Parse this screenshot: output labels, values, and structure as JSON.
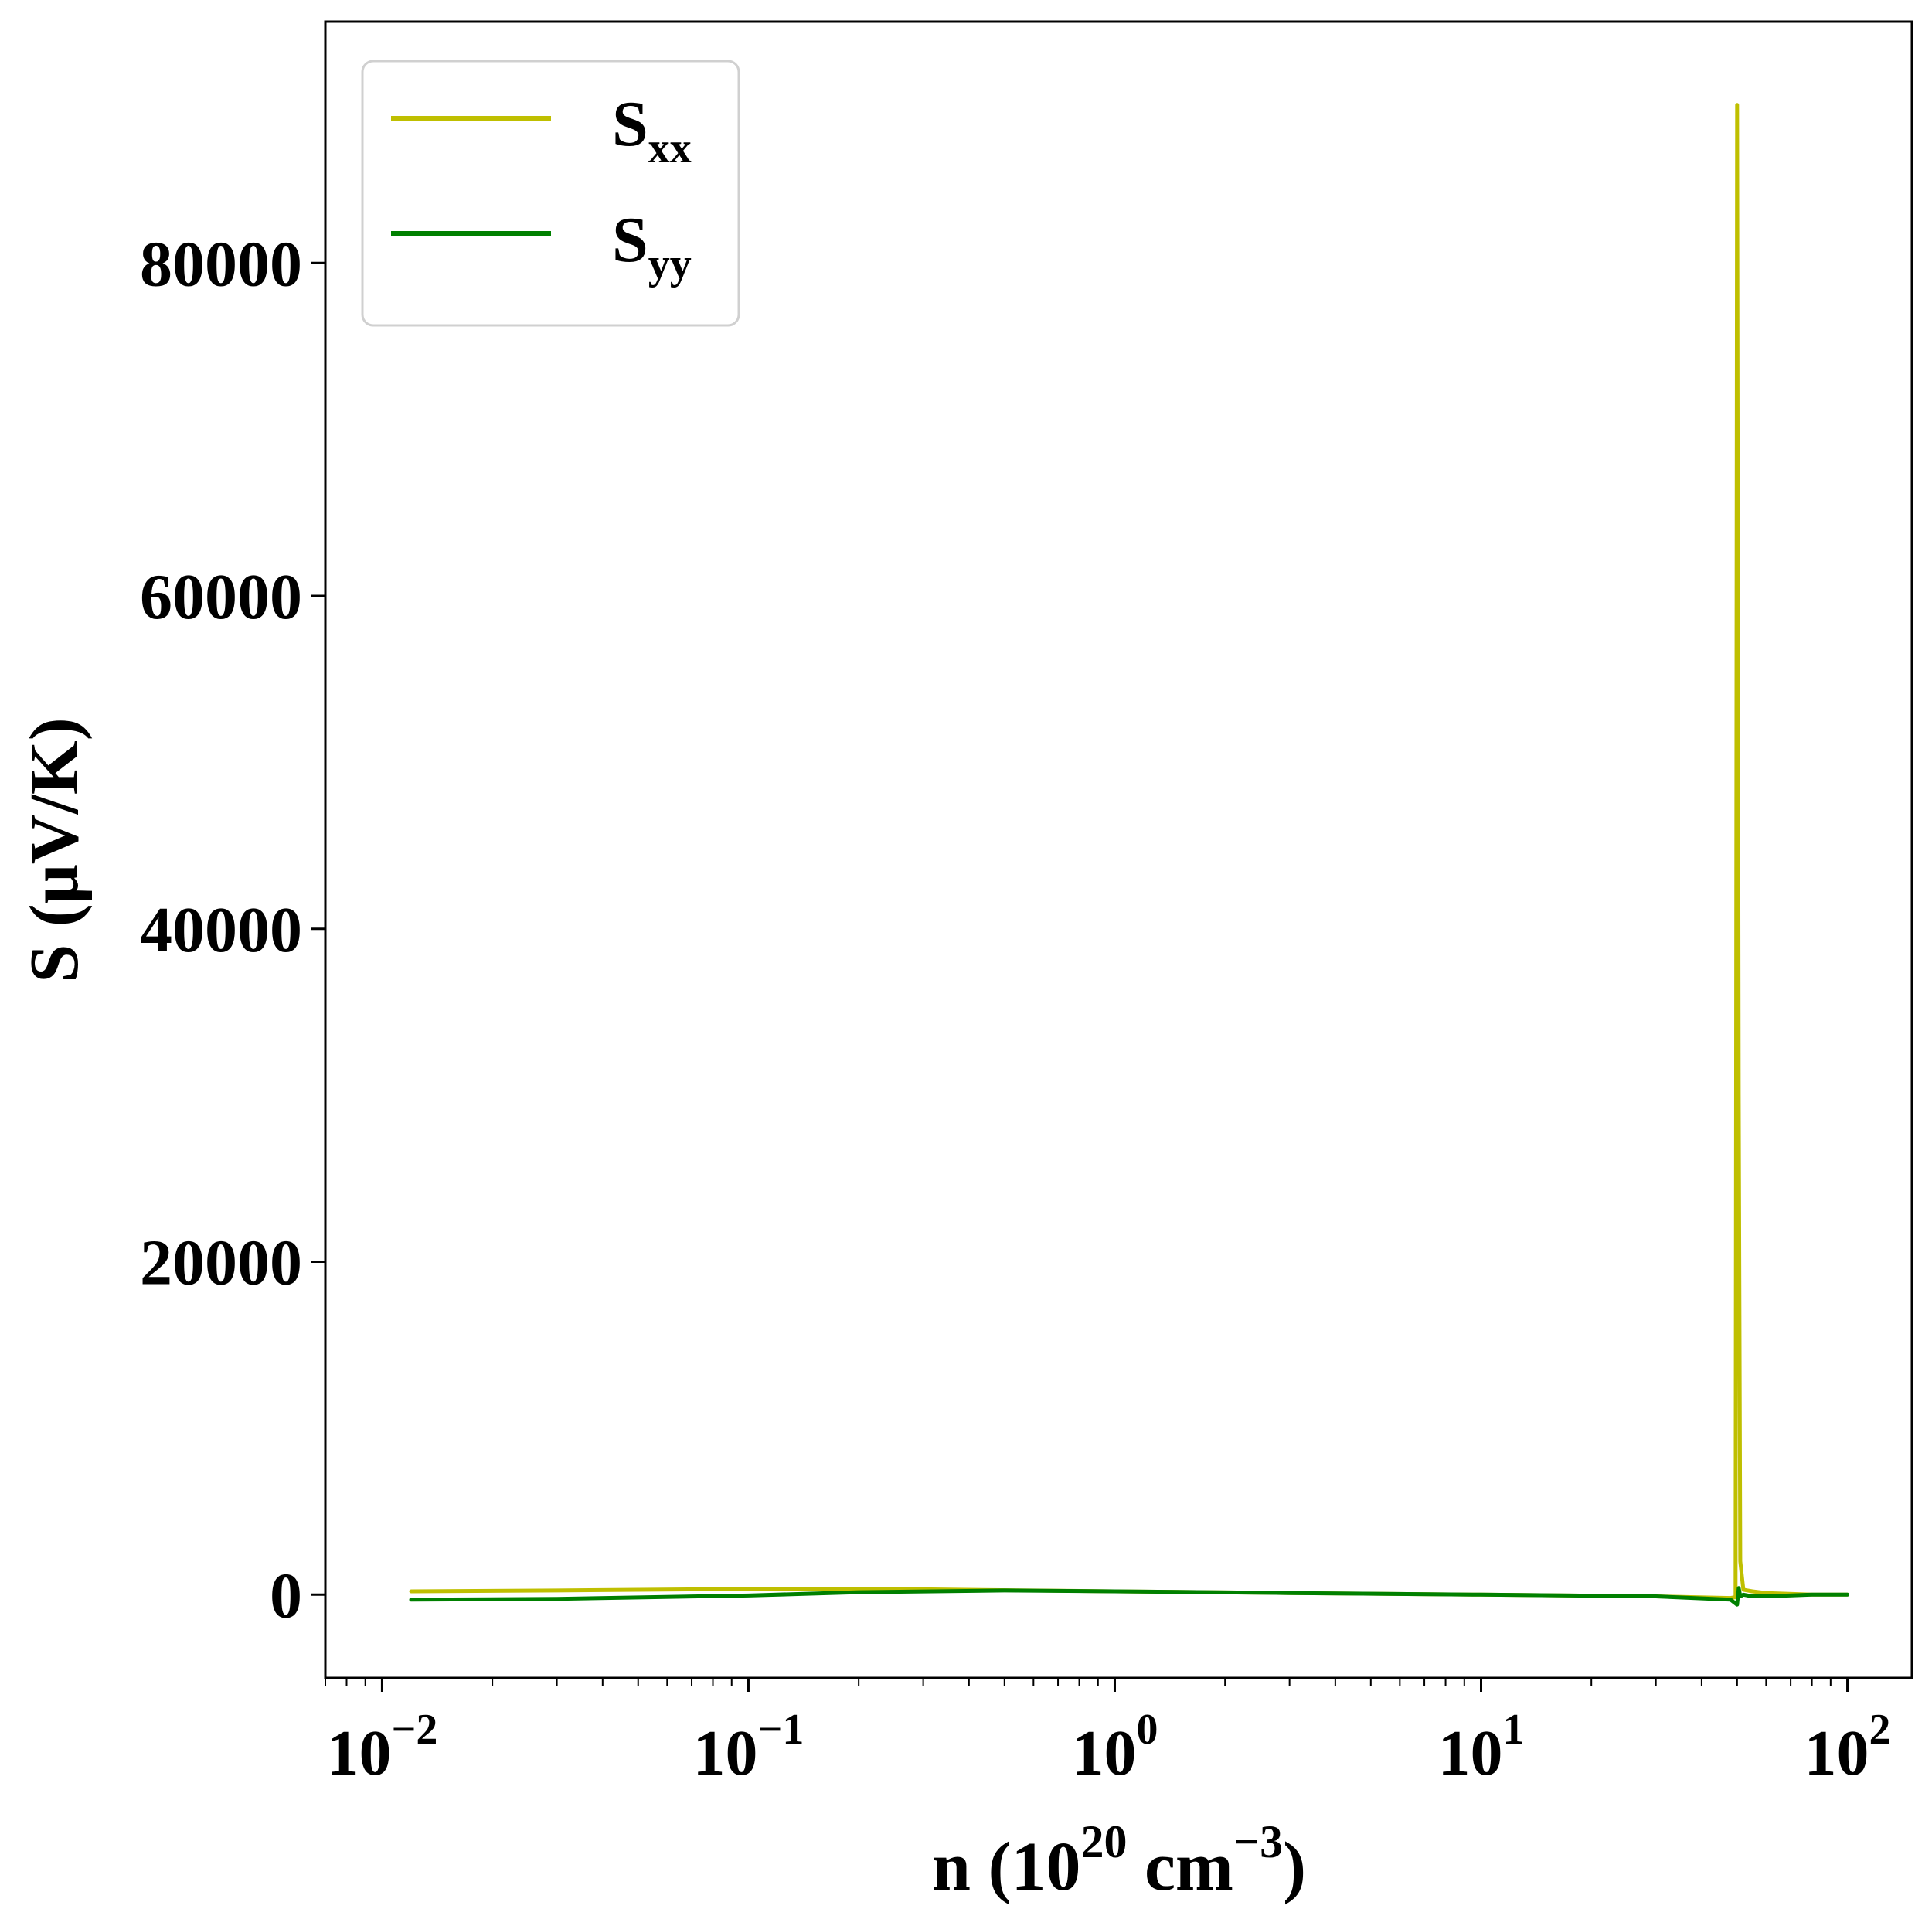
{
  "chart_data": {
    "type": "line",
    "xscale": "log",
    "xlim": [
      0.007,
      150
    ],
    "ylim": [
      -5000,
      94500
    ],
    "xlabel": {
      "base": "n (10",
      "sup1": "20",
      "mid": " cm",
      "sup2": "−3",
      "end": ")"
    },
    "ylabel": "S (μV/K)",
    "yticks": [
      0,
      20000,
      40000,
      60000,
      80000
    ],
    "ytick_labels": [
      "0",
      "20000",
      "40000",
      "60000",
      "80000"
    ],
    "xticks": [
      {
        "value": 0.01,
        "base": "10",
        "exp": "−2"
      },
      {
        "value": 0.1,
        "base": "10",
        "exp": "−1"
      },
      {
        "value": 1,
        "base": "10",
        "exp": "0"
      },
      {
        "value": 10,
        "base": "10",
        "exp": "1"
      },
      {
        "value": 100,
        "base": "10",
        "exp": "2"
      }
    ],
    "grid": false,
    "legend_position": "top-left",
    "series": [
      {
        "name": "S_xx",
        "label_main": "S",
        "label_sub": "xx",
        "color": "#bfbf00",
        "x": [
          0.012,
          0.03,
          0.1,
          0.3,
          1,
          3,
          10,
          30,
          48,
          49.5,
          50,
          50.5,
          51,
          52,
          55,
          60,
          80,
          100
        ],
        "y": [
          200,
          250,
          350,
          320,
          200,
          100,
          0,
          -100,
          -200,
          -150,
          89500,
          30000,
          2000,
          300,
          200,
          100,
          0,
          0
        ]
      },
      {
        "name": "S_yy",
        "label_main": "S",
        "label_sub": "yy",
        "color": "#008000",
        "x": [
          0.012,
          0.03,
          0.1,
          0.2,
          0.5,
          1,
          3,
          10,
          30,
          48,
          50,
          50.5,
          51,
          52,
          55,
          60,
          80,
          100
        ],
        "y": [
          -300,
          -250,
          -50,
          150,
          250,
          200,
          100,
          0,
          -100,
          -300,
          -600,
          400,
          -100,
          0,
          -100,
          -100,
          0,
          0
        ]
      }
    ]
  }
}
